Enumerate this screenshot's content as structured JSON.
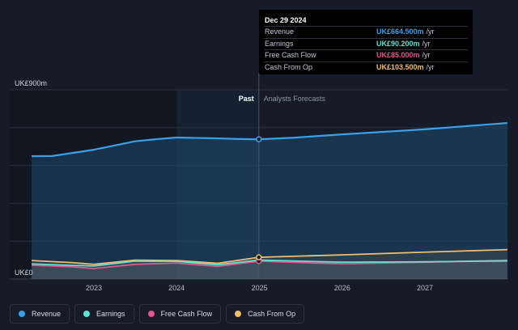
{
  "chart_data": {
    "type": "area",
    "y_top_label": "UK£900m",
    "y_bottom_label": "UK£0",
    "ylim": [
      0,
      900
    ],
    "xlim": [
      "2022-04-01",
      "2027-12-31"
    ],
    "x_ticks": [
      "2023",
      "2024",
      "2025",
      "2026",
      "2027"
    ],
    "past_label": "Past",
    "forecast_label": "Analysts Forecasts",
    "divider_date": "2024-12-29",
    "highlight_start": "2024-01-01",
    "series": [
      {
        "name": "Revenue",
        "color": "#3b9fe8",
        "points": [
          [
            "2022-04-01",
            584
          ],
          [
            "2022-07-01",
            585
          ],
          [
            "2022-10-01",
            600
          ],
          [
            "2023-01-01",
            615
          ],
          [
            "2023-04-01",
            635
          ],
          [
            "2023-07-01",
            655
          ],
          [
            "2023-10-01",
            665
          ],
          [
            "2024-01-01",
            673
          ],
          [
            "2024-04-01",
            671
          ],
          [
            "2024-07-01",
            669
          ],
          [
            "2024-10-01",
            666
          ],
          [
            "2024-12-29",
            664.5
          ],
          [
            "2025-06-01",
            672
          ],
          [
            "2025-12-31",
            688
          ],
          [
            "2026-12-31",
            712
          ],
          [
            "2027-12-31",
            742
          ]
        ]
      },
      {
        "name": "Earnings",
        "color": "#5fe1cf",
        "points": [
          [
            "2022-04-01",
            72
          ],
          [
            "2022-10-01",
            65
          ],
          [
            "2023-01-01",
            62
          ],
          [
            "2023-07-01",
            85
          ],
          [
            "2024-01-01",
            84
          ],
          [
            "2024-07-01",
            68
          ],
          [
            "2024-12-29",
            90.2
          ],
          [
            "2025-12-31",
            80
          ],
          [
            "2026-12-31",
            82
          ],
          [
            "2027-12-31",
            86
          ]
        ]
      },
      {
        "name": "Free Cash Flow",
        "color": "#e0558f",
        "points": [
          [
            "2022-04-01",
            66
          ],
          [
            "2022-10-01",
            58
          ],
          [
            "2023-01-01",
            50
          ],
          [
            "2023-07-01",
            70
          ],
          [
            "2024-01-01",
            76
          ],
          [
            "2024-07-01",
            60
          ],
          [
            "2024-12-29",
            85
          ],
          [
            "2025-12-31",
            72
          ],
          [
            "2026-12-31",
            80
          ],
          [
            "2027-12-31",
            90
          ]
        ]
      },
      {
        "name": "Cash From Op",
        "color": "#f2bd6b",
        "points": [
          [
            "2022-04-01",
            88
          ],
          [
            "2022-10-01",
            78
          ],
          [
            "2023-01-01",
            70
          ],
          [
            "2023-07-01",
            90
          ],
          [
            "2024-01-01",
            88
          ],
          [
            "2024-07-01",
            75
          ],
          [
            "2024-12-29",
            103.5
          ],
          [
            "2025-12-31",
            115
          ],
          [
            "2026-12-31",
            128
          ],
          [
            "2027-12-31",
            140
          ]
        ]
      }
    ]
  },
  "tooltip": {
    "date": "Dec 29 2024",
    "rows": [
      {
        "label": "Revenue",
        "value": "UK£664.500m",
        "unit": "/yr",
        "color": "#3b9fe8"
      },
      {
        "label": "Earnings",
        "value": "UK£90.200m",
        "unit": "/yr",
        "color": "#5fe1cf"
      },
      {
        "label": "Free Cash Flow",
        "value": "UK£85.000m",
        "unit": "/yr",
        "color": "#e0558f"
      },
      {
        "label": "Cash From Op",
        "value": "UK£103.500m",
        "unit": "/yr",
        "color": "#f2bd6b"
      }
    ]
  },
  "legend": [
    {
      "label": "Revenue",
      "color": "#3b9fe8"
    },
    {
      "label": "Earnings",
      "color": "#5fe1cf"
    },
    {
      "label": "Free Cash Flow",
      "color": "#e0558f"
    },
    {
      "label": "Cash From Op",
      "color": "#f2bd6b"
    }
  ]
}
